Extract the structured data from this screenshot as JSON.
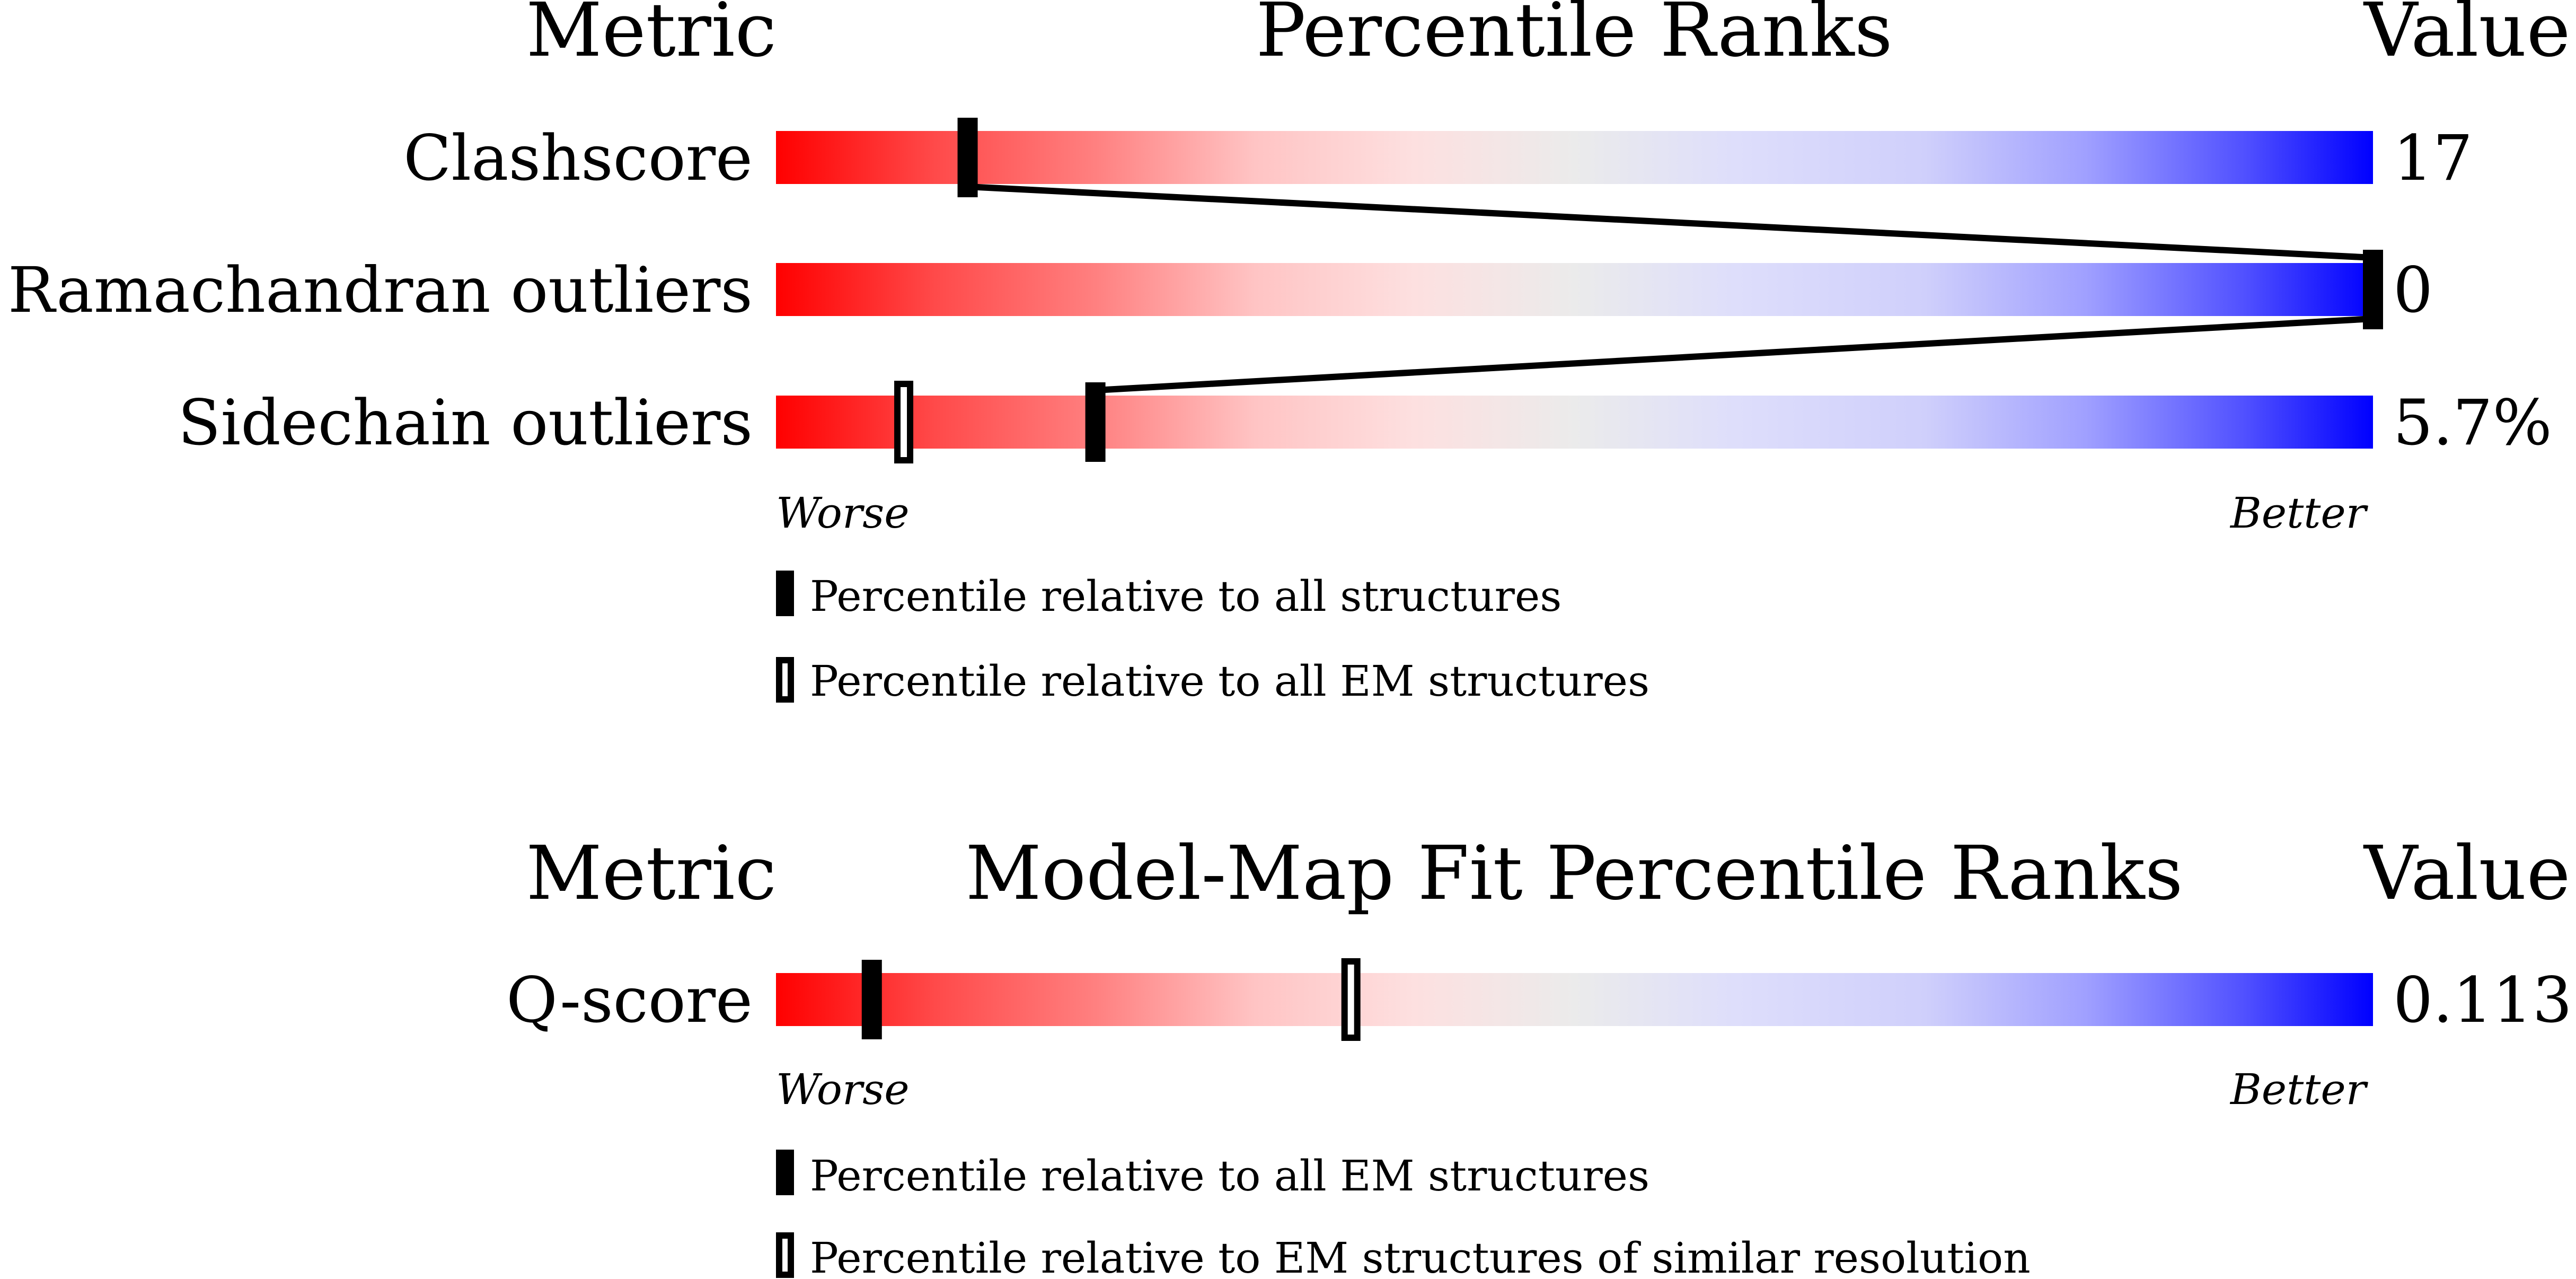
{
  "colors": {
    "worse": "#ff0000",
    "middle": "#ebebeb",
    "better": "#0000ff",
    "marker": "#000000"
  },
  "chart_data": [
    {
      "type": "percentile-bar",
      "header": {
        "metric": "Metric",
        "title": "Percentile Ranks",
        "value": "Value"
      },
      "rows": [
        {
          "label": "Clashscore",
          "value": "17",
          "percentile_filled": 12,
          "percentile_hollow": null
        },
        {
          "label": "Ramachandran outliers",
          "value": "0",
          "percentile_filled": 100,
          "percentile_hollow": null
        },
        {
          "label": "Sidechain outliers",
          "value": "5.7%",
          "percentile_filled": 20,
          "percentile_hollow": 8
        }
      ],
      "axis": {
        "left": "Worse",
        "right": "Better",
        "range": [
          0,
          100
        ]
      },
      "legend": [
        {
          "marker": "filled",
          "text": "Percentile relative to all structures"
        },
        {
          "marker": "hollow",
          "text": "Percentile relative to all EM structures"
        }
      ]
    },
    {
      "type": "percentile-bar",
      "header": {
        "metric": "Metric",
        "title": "Model-Map Fit Percentile Ranks",
        "value": "Value"
      },
      "rows": [
        {
          "label": "Q-score",
          "value": "0.113",
          "percentile_filled": 6,
          "percentile_hollow": 36
        }
      ],
      "axis": {
        "left": "Worse",
        "right": "Better",
        "range": [
          0,
          100
        ]
      },
      "legend": [
        {
          "marker": "filled",
          "text": "Percentile relative to all EM structures"
        },
        {
          "marker": "hollow",
          "text": "Percentile relative to EM structures of similar resolution"
        }
      ]
    }
  ]
}
